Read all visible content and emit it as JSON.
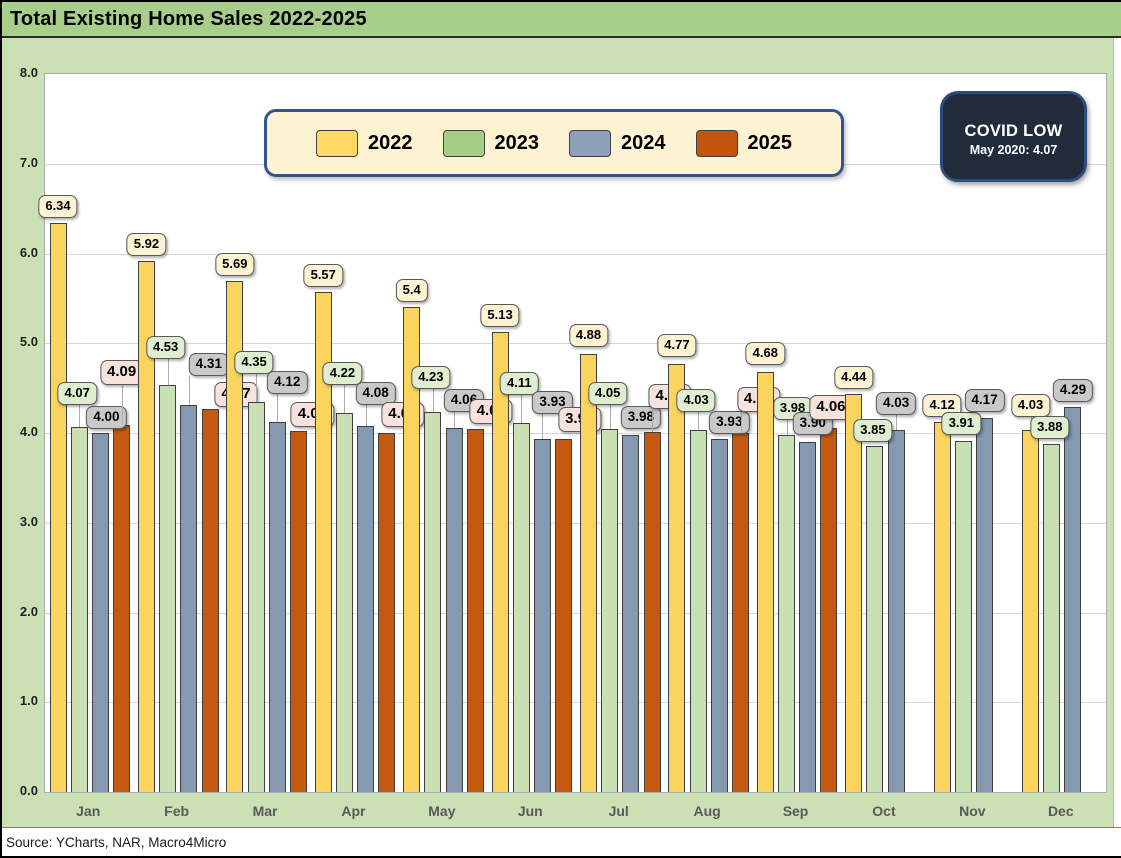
{
  "title": "Total Existing Home Sales 2022-2025",
  "source": "Source: YCharts, NAR, Macro4Micro",
  "callout": {
    "line1": "COVID LOW",
    "line2": "May 2020: 4.07"
  },
  "colors": {
    "title_bar_bg": "#A8CE8C",
    "chart_bg": "#CBE0B5",
    "plot_bg": "#FFFFFF",
    "gridline": "#D8D8D8",
    "legend_bg": "#FDF3D2",
    "legend_border": "#34558B",
    "callout_bg": "#212B3A",
    "callout_border": "#2E4D7E"
  },
  "chart_data": {
    "type": "bar",
    "title": "Total Existing Home Sales 2022-2025",
    "xlabel": "",
    "ylabel": "",
    "ylim": [
      0,
      8
    ],
    "ytick_step": 1.0,
    "yticks": [
      "0.0",
      "1.0",
      "2.0",
      "3.0",
      "4.0",
      "5.0",
      "6.0",
      "7.0",
      "8.0"
    ],
    "grid": true,
    "legend_position": "top-center",
    "categories": [
      "Jan",
      "Feb",
      "Mar",
      "Apr",
      "May",
      "Jun",
      "Jul",
      "Aug",
      "Sep",
      "Oct",
      "Nov",
      "Dec"
    ],
    "series": [
      {
        "name": "2022",
        "color": "#FBD45E",
        "legend_color": "#FFD964",
        "label_bg": "#FDF3D3",
        "values": [
          6.34,
          5.92,
          5.69,
          5.57,
          5.4,
          5.13,
          4.88,
          4.77,
          4.68,
          4.44,
          4.12,
          4.03
        ],
        "labels": [
          "6.34",
          "5.92",
          "5.69",
          "5.57",
          "5.4",
          "5.13",
          "4.88",
          "4.77",
          "4.68",
          "4.44",
          "4.12",
          "4.03"
        ]
      },
      {
        "name": "2023",
        "color": "#C9DFB4",
        "legend_color": "#A5CE85",
        "label_bg": "#DFEDD1",
        "values": [
          4.07,
          4.53,
          4.35,
          4.22,
          4.23,
          4.11,
          4.05,
          4.03,
          3.98,
          3.85,
          3.91,
          3.88
        ],
        "labels": [
          "4.07",
          "4.53",
          "4.35",
          "4.22",
          "4.23",
          "4.11",
          "4.05",
          "4.03",
          "3.98",
          "3.85",
          "3.91",
          "3.88"
        ]
      },
      {
        "name": "2024",
        "color": "#8599B1",
        "legend_color": "#8CA0B9",
        "label_bg": "#C9C9C9",
        "values": [
          4.0,
          4.31,
          4.12,
          4.08,
          4.06,
          3.93,
          3.98,
          3.93,
          3.9,
          4.03,
          4.17,
          4.29
        ],
        "labels": [
          "4.00",
          "4.31",
          "4.12",
          "4.08",
          "4.06",
          "3.93",
          "3.98",
          "3.93",
          "3.90",
          "4.03",
          "4.17",
          "4.29"
        ]
      },
      {
        "name": "2025",
        "color": "#C45A12",
        "legend_color": "#C4530D",
        "label_bg": "#F7E2DC",
        "values": [
          4.09,
          4.27,
          4.02,
          4.0,
          4.04,
          3.93,
          4.01,
          4.0,
          4.06,
          null,
          null,
          null
        ],
        "labels": [
          "4.09",
          "4.27",
          "4.02",
          "4.00",
          "4.04",
          "3.93",
          "4.01",
          "4.00",
          "4.06",
          null,
          null,
          null
        ]
      }
    ]
  }
}
